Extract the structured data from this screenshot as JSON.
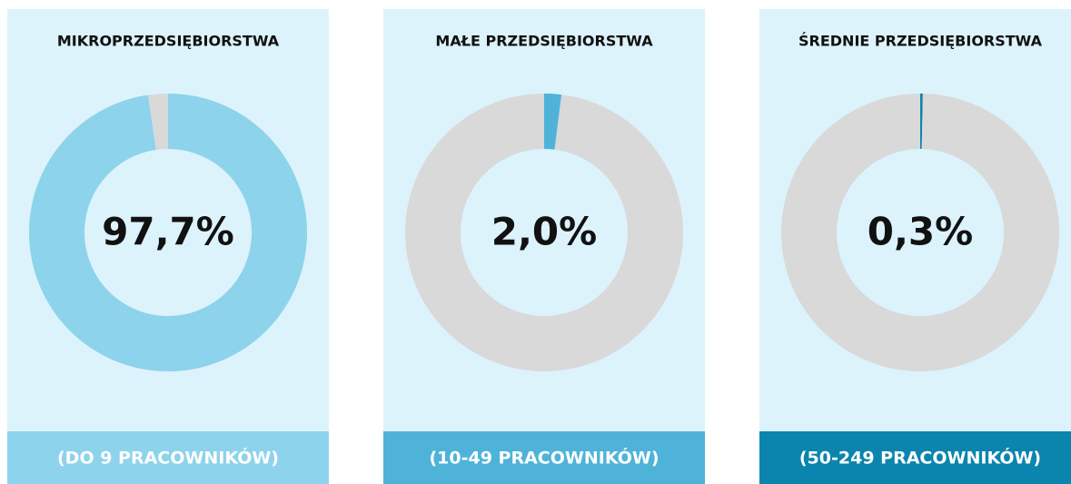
{
  "chart_data": [
    {
      "type": "donut",
      "title": "MIKROPRZEDSIĘBIORSTWA",
      "values": [
        97.7,
        2.3
      ],
      "value_labels": [
        "97,7%",
        null
      ],
      "colors": [
        "#8dd3ec",
        "#d9d9d9"
      ],
      "subtitle": "(DO 9 PRACOWNIKÓW)",
      "subtitle_color": "#8dd3ec"
    },
    {
      "type": "donut",
      "title": "MAŁE PRZEDSIĘBIORSTWA",
      "values": [
        2.0,
        98.0
      ],
      "value_labels": [
        "2,0%",
        null
      ],
      "colors": [
        "#4fb3d9",
        "#d9d9d9"
      ],
      "subtitle": "(10-49 PRACOWNIKÓW)",
      "subtitle_color": "#4fb3d9"
    },
    {
      "type": "donut",
      "title": "ŚREDNIE PRZEDSIĘBIORSTWA",
      "values": [
        0.3,
        99.7
      ],
      "value_labels": [
        "0,3%",
        null
      ],
      "colors": [
        "#0b85ad",
        "#d9d9d9"
      ],
      "subtitle": "(50-249 PRACOWNIKÓW)",
      "subtitle_color": "#0b85ad"
    }
  ]
}
